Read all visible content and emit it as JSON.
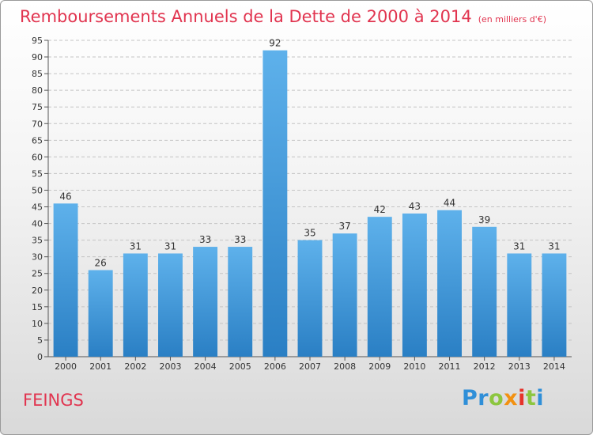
{
  "title": {
    "main": "Remboursements Annuels de la Dette de 2000 à 2014",
    "unit": "(en milliers d'€)"
  },
  "commune": "FEINGS",
  "brand": {
    "parts": [
      "Pr",
      "o",
      "x",
      "i",
      "t",
      "i"
    ],
    "colors": [
      "#2f8fd8",
      "#8cc63f",
      "#f29111",
      "#e6332a",
      "#8cc63f",
      "#2f8fd8"
    ]
  },
  "colors": {
    "title": "#e1344f",
    "bar_light": "#5eb1eb",
    "bar_dark": "#2a7fc4"
  },
  "chart_data": {
    "type": "bar",
    "title": "Remboursements Annuels de la Dette de 2000 à 2014",
    "subtitle": "(en milliers d'€)",
    "categories": [
      "2000",
      "2001",
      "2002",
      "2003",
      "2004",
      "2005",
      "2006",
      "2007",
      "2008",
      "2009",
      "2010",
      "2011",
      "2012",
      "2013",
      "2014"
    ],
    "values": [
      46,
      26,
      31,
      31,
      33,
      33,
      92,
      35,
      37,
      42,
      43,
      44,
      39,
      31,
      31
    ],
    "ylim": [
      0,
      95
    ],
    "yticks": [
      0,
      5,
      10,
      15,
      20,
      25,
      30,
      35,
      40,
      45,
      50,
      55,
      60,
      65,
      70,
      75,
      80,
      85,
      90,
      95
    ],
    "grid": true,
    "legend": "none",
    "data_labels": true
  }
}
